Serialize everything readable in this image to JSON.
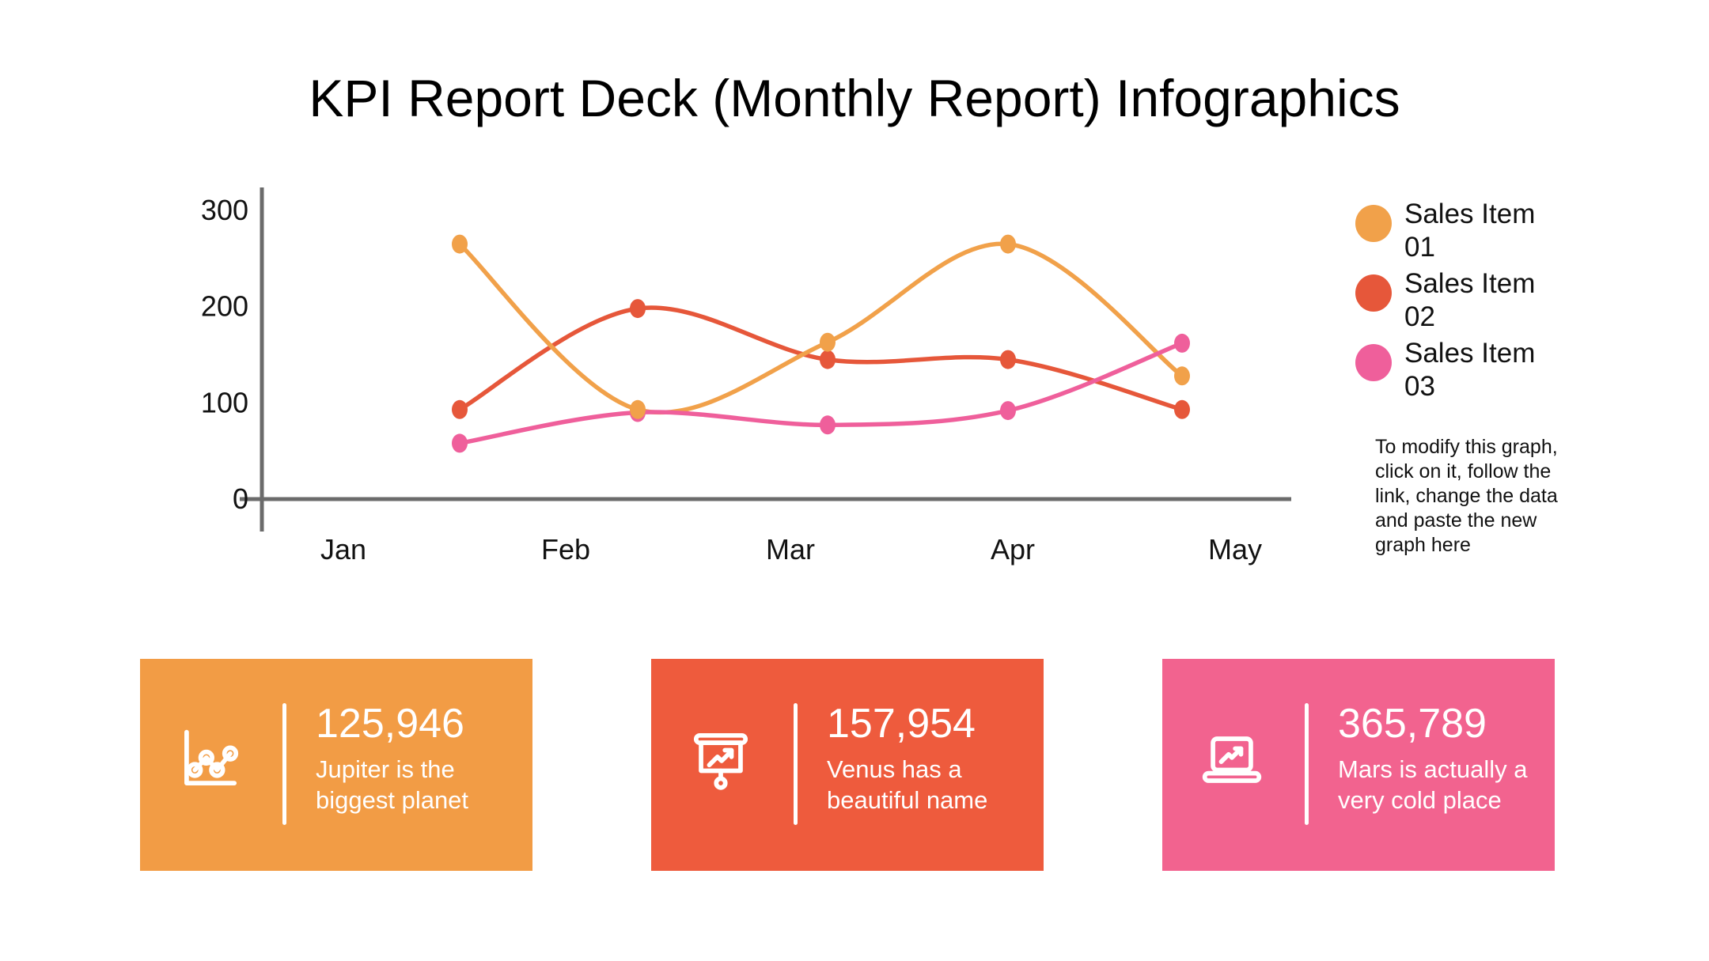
{
  "title": "KPI Report Deck (Monthly Report) Infographics",
  "chart_data": {
    "type": "line",
    "x": [
      "Jan",
      "Feb",
      "Mar",
      "Apr",
      "May"
    ],
    "series": [
      {
        "name": "Sales Item 01",
        "color": "#F1A14A",
        "values": [
          265,
          93,
          163,
          265,
          128
        ]
      },
      {
        "name": "Sales Item 02",
        "color": "#E6573A",
        "values": [
          93,
          198,
          145,
          145,
          93
        ]
      },
      {
        "name": "Sales Item 03",
        "color": "#EF5F9B",
        "values": [
          58,
          90,
          77,
          92,
          162
        ]
      }
    ],
    "title": "",
    "xlabel": "",
    "ylabel": "",
    "ylim": [
      0,
      300
    ],
    "yticks": [
      0,
      100,
      200,
      300
    ],
    "grid": false,
    "legend_position": "right",
    "axis_color": "#6B6B6B",
    "label_color": "#121212",
    "smooth_curves": true,
    "point_markers": true
  },
  "note": {
    "text": "To modify this graph, click on it, follow the link, change the data and paste the new graph here"
  },
  "cards": [
    {
      "icon": "line-chart-icon",
      "value": "125,946",
      "caption": "Jupiter is the biggest planet",
      "color": "#F29C45"
    },
    {
      "icon": "presentation-chart-icon",
      "value": "157,954",
      "caption": "Venus has a beautiful name",
      "color": "#EE5B3D"
    },
    {
      "icon": "laptop-chart-icon",
      "value": "365,789",
      "caption": "Mars is actually a very cold place",
      "color": "#F2638F"
    }
  ]
}
